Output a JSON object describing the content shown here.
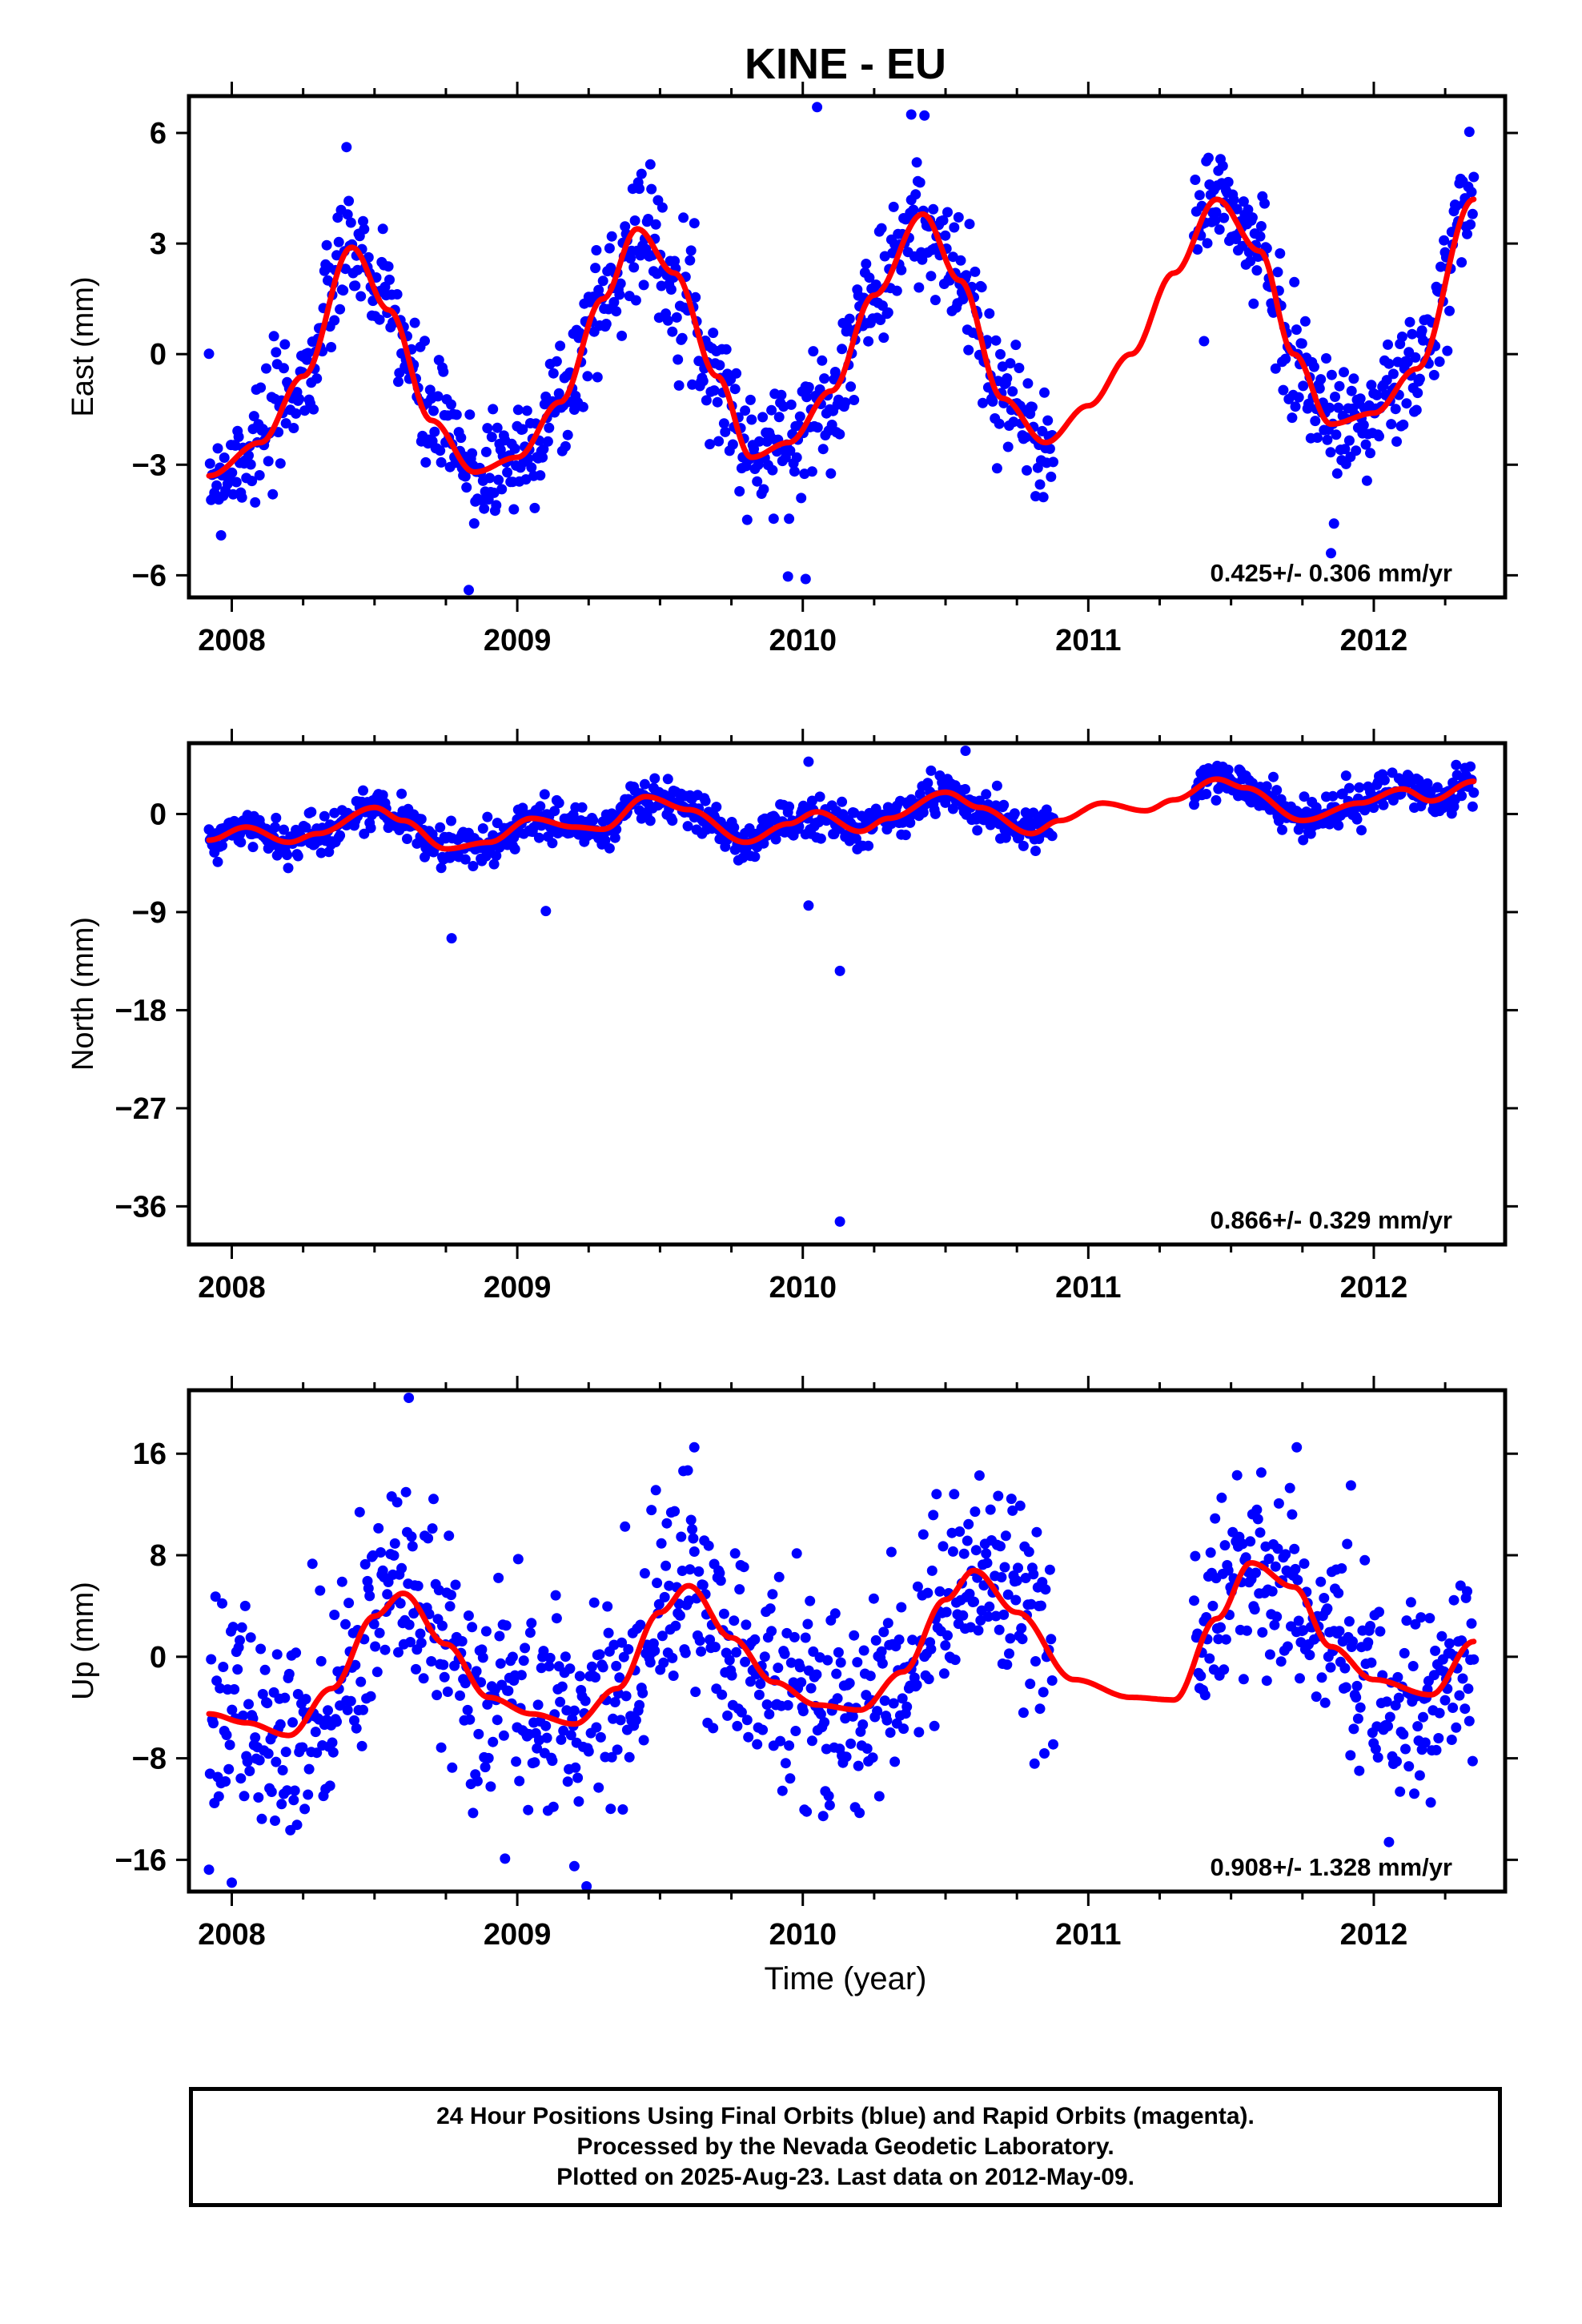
{
  "title": "KINE - EU",
  "xlabel": "Time (year)",
  "colors": {
    "points": "#0000ff",
    "fit": "#ff0000",
    "axis": "#000000"
  },
  "chart_data": [
    {
      "type": "scatter",
      "ylabel": "East (mm)",
      "rate": "0.425+/- 0.306 mm/yr",
      "xlim": [
        2007.85,
        2012.46
      ],
      "ylim": [
        -6.6,
        7.0
      ],
      "xticks": [
        2008,
        2009,
        2010,
        2011,
        2012
      ],
      "yticks": [
        6,
        3,
        0,
        -3,
        -6
      ],
      "ytick_labels": [
        "6",
        "3",
        "0",
        "−3",
        "−6"
      ],
      "gap": [
        2010.88,
        2011.37
      ],
      "fit": {
        "x": [
          2007.92,
          2008.1,
          2008.25,
          2008.42,
          2008.55,
          2008.7,
          2008.85,
          2009.0,
          2009.15,
          2009.3,
          2009.42,
          2009.55,
          2009.7,
          2009.82,
          2009.95,
          2010.1,
          2010.25,
          2010.42,
          2010.55,
          2010.7,
          2010.85,
          2011.0,
          2011.15,
          2011.3,
          2011.45,
          2011.6,
          2011.72,
          2011.85,
          2012.0,
          2012.15,
          2012.35
        ],
        "y": [
          -3.3,
          -2.4,
          -0.6,
          2.9,
          1.2,
          -1.8,
          -3.2,
          -2.8,
          -1.3,
          1.5,
          3.4,
          2.2,
          -0.6,
          -2.8,
          -2.4,
          -1.0,
          1.6,
          3.8,
          2.0,
          -1.2,
          -2.4,
          -1.4,
          0.0,
          2.2,
          4.2,
          2.8,
          0.0,
          -1.9,
          -1.6,
          -0.4,
          4.2
        ]
      },
      "outliers": [
        [
          2010.05,
          6.7
        ],
        [
          2010.38,
          6.5
        ],
        [
          2010.01,
          -6.1
        ],
        [
          2011.85,
          -5.4
        ],
        [
          2008.83,
          -6.4
        ]
      ]
    },
    {
      "type": "scatter",
      "ylabel": "North (mm)",
      "rate": "0.866+/- 0.329 mm/yr",
      "xlim": [
        2007.85,
        2012.46
      ],
      "ylim": [
        -39.5,
        6.5
      ],
      "xticks": [
        2008,
        2009,
        2010,
        2011,
        2012
      ],
      "yticks": [
        0,
        -9,
        -18,
        -27,
        -36
      ],
      "ytick_labels": [
        "0",
        "−9",
        "−18",
        "−27",
        "−36"
      ],
      "gap": [
        2010.88,
        2011.37
      ],
      "fit": {
        "x": [
          2007.92,
          2008.05,
          2008.2,
          2008.3,
          2008.5,
          2008.6,
          2008.75,
          2008.9,
          2009.05,
          2009.2,
          2009.3,
          2009.45,
          2009.6,
          2009.8,
          2009.95,
          2010.05,
          2010.2,
          2010.3,
          2010.5,
          2010.62,
          2010.8,
          2010.9,
          2011.05,
          2011.2,
          2011.3,
          2011.45,
          2011.55,
          2011.75,
          2011.95,
          2012.1,
          2012.2,
          2012.35
        ],
        "y": [
          -2.4,
          -1.2,
          -2.6,
          -1.8,
          0.6,
          -0.6,
          -3.2,
          -2.6,
          -0.4,
          -1.2,
          -1.4,
          1.6,
          0.4,
          -2.6,
          -0.9,
          0.2,
          -1.6,
          -0.4,
          2.0,
          0.6,
          -1.8,
          -0.6,
          1.0,
          0.3,
          1.3,
          3.2,
          2.4,
          -0.6,
          1.0,
          2.3,
          1.2,
          3.0
        ]
      },
      "outliers": [
        [
          2010.13,
          -37.4
        ],
        [
          2010.13,
          -14.4
        ],
        [
          2010.02,
          -8.4
        ],
        [
          2009.1,
          -8.9
        ],
        [
          2008.77,
          -11.4
        ],
        [
          2010.57,
          5.8
        ],
        [
          2010.02,
          4.8
        ]
      ]
    },
    {
      "type": "scatter",
      "ylabel": "Up (mm)",
      "rate": "0.908+/- 1.328 mm/yr",
      "xlim": [
        2007.85,
        2012.46
      ],
      "ylim": [
        -18.5,
        21.0
      ],
      "xticks": [
        2008,
        2009,
        2010,
        2011,
        2012
      ],
      "yticks": [
        16,
        8,
        0,
        -8,
        -16
      ],
      "ytick_labels": [
        "16",
        "8",
        "0",
        "−8",
        "−16"
      ],
      "gap": [
        2010.88,
        2011.37
      ],
      "fit": {
        "x": [
          2007.92,
          2008.05,
          2008.2,
          2008.35,
          2008.5,
          2008.6,
          2008.75,
          2008.9,
          2009.05,
          2009.2,
          2009.35,
          2009.5,
          2009.6,
          2009.75,
          2009.9,
          2010.05,
          2010.2,
          2010.35,
          2010.5,
          2010.6,
          2010.75,
          2010.95,
          2011.15,
          2011.3,
          2011.45,
          2011.57,
          2011.72,
          2011.85,
          2012.0,
          2012.2,
          2012.35
        ],
        "y": [
          -4.5,
          -5.2,
          -6.2,
          -2.5,
          3.2,
          5.0,
          1.0,
          -3.2,
          -4.5,
          -5.3,
          -2.5,
          3.5,
          5.6,
          1.5,
          -2.0,
          -3.8,
          -4.2,
          -1.2,
          4.5,
          6.8,
          3.5,
          -1.8,
          -3.2,
          -3.4,
          3.0,
          7.4,
          5.5,
          0.8,
          -1.8,
          -3.0,
          1.2
        ]
      },
      "outliers": [
        [
          2008.62,
          20.4
        ],
        [
          2009.62,
          16.5
        ],
        [
          2011.73,
          16.5
        ],
        [
          2011.92,
          13.5
        ],
        [
          2008.0,
          -17.8
        ],
        [
          2009.2,
          -16.5
        ]
      ]
    }
  ],
  "caption": {
    "line1": "24 Hour Positions Using Final Orbits (blue) and Rapid Orbits (magenta).",
    "line2": "Processed by the Nevada Geodetic Laboratory.",
    "line3": "Plotted on 2025-Aug-23. Last data on 2012-May-09."
  }
}
